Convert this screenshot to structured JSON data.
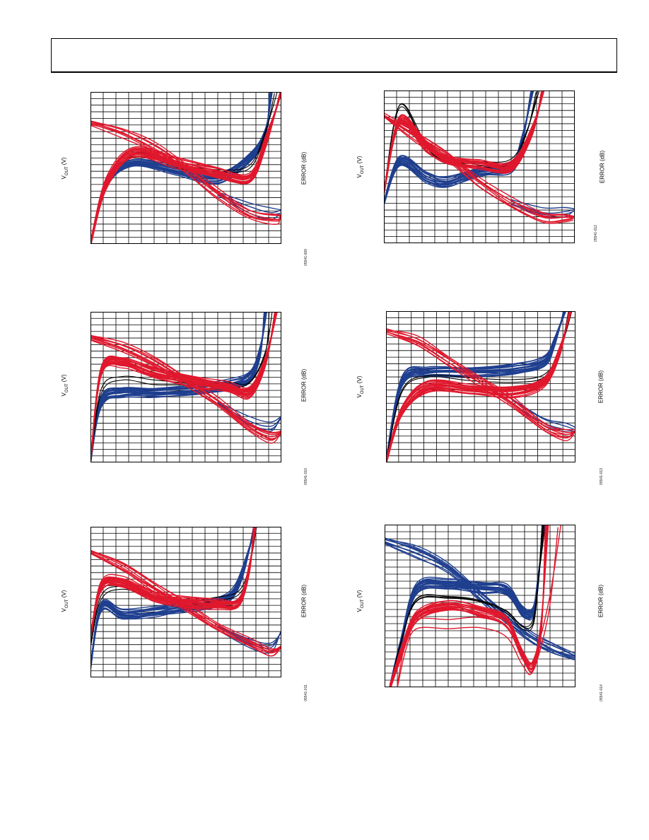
{
  "header": {},
  "colors": {
    "blue": "#1f3f8f",
    "red": "#e0182d",
    "black": "#000000",
    "grid": "#000000"
  },
  "chart_data": [
    {
      "type": "line",
      "figure_id": "05541-009",
      "ylabel": "VOUT (V)",
      "y2label": "ERROR (dB)",
      "grid": true,
      "series": [
        {
          "color": "blue",
          "count": 18,
          "values": [
            [
              0,
              0
            ],
            [
              1.5,
              12
            ],
            [
              4,
              16
            ],
            [
              8,
              14.5
            ],
            [
              12,
              13
            ],
            [
              15,
              17
            ],
            [
              16.5,
              22
            ],
            [
              17,
              30
            ]
          ]
        },
        {
          "color": "black",
          "count": 2,
          "values": [
            [
              0,
              0
            ],
            [
              1.5,
              12
            ],
            [
              4,
              17.5
            ],
            [
              8,
              15.5
            ],
            [
              12,
              14.5
            ],
            [
              15,
              15.5
            ],
            [
              16.5,
              22
            ],
            [
              17.5,
              30
            ]
          ]
        },
        {
          "color": "red",
          "count": 20,
          "values": [
            [
              0,
              0
            ],
            [
              1.5,
              12
            ],
            [
              4,
              18
            ],
            [
              8,
              16
            ],
            [
              12,
              14
            ],
            [
              15,
              13
            ],
            [
              16.5,
              20
            ],
            [
              18,
              30
            ]
          ]
        },
        {
          "color": "red",
          "count": 8,
          "values": [
            [
              0,
              24
            ],
            [
              3,
              22
            ],
            [
              6,
              19
            ],
            [
              9,
              15
            ],
            [
              12,
              10
            ],
            [
              15,
              6
            ],
            [
              17.5,
              5
            ],
            [
              18,
              5.5
            ]
          ]
        },
        {
          "color": "blue",
          "count": 4,
          "values": [
            [
              12,
              10
            ],
            [
              15,
              7
            ],
            [
              17,
              6
            ],
            [
              18,
              6.5
            ]
          ]
        }
      ]
    },
    {
      "type": "line",
      "figure_id": "05541-012",
      "ylabel": "VOUT (V)",
      "y2label": "ERROR (dB)",
      "grid": true,
      "series": [
        {
          "color": "blue",
          "count": 18,
          "values": [
            [
              0,
              8
            ],
            [
              1.5,
              16
            ],
            [
              4,
              13
            ],
            [
              6,
              12
            ],
            [
              9,
              14
            ],
            [
              12,
              15
            ],
            [
              13,
              20
            ],
            [
              14,
              30
            ]
          ]
        },
        {
          "color": "black",
          "count": 3,
          "values": [
            [
              0,
              10
            ],
            [
              1.5,
              27
            ],
            [
              4,
              19
            ],
            [
              6,
              16
            ],
            [
              9,
              15.5
            ],
            [
              12,
              16
            ],
            [
              13.5,
              22
            ],
            [
              14.5,
              30
            ]
          ]
        },
        {
          "color": "red",
          "count": 20,
          "values": [
            [
              0,
              10
            ],
            [
              1.5,
              24
            ],
            [
              4,
              19
            ],
            [
              6,
              16.5
            ],
            [
              9,
              15.5
            ],
            [
              12,
              15
            ],
            [
              14,
              22
            ],
            [
              15,
              30
            ]
          ]
        },
        {
          "color": "red",
          "count": 8,
          "values": [
            [
              0,
              25
            ],
            [
              3,
              21
            ],
            [
              6,
              17
            ],
            [
              9,
              12
            ],
            [
              12,
              8
            ],
            [
              15,
              5
            ],
            [
              17,
              5
            ],
            [
              18,
              5
            ]
          ]
        },
        {
          "color": "blue",
          "count": 4,
          "values": [
            [
              12,
              8
            ],
            [
              15,
              6
            ],
            [
              17,
              6
            ],
            [
              18,
              6.5
            ]
          ]
        }
      ]
    },
    {
      "type": "line",
      "figure_id": "05541-010",
      "ylabel": "VOUT (V)",
      "y2label": "ERROR (dB)",
      "grid": true,
      "series": [
        {
          "color": "blue",
          "count": 20,
          "values": [
            [
              0,
              0
            ],
            [
              1,
              12
            ],
            [
              3,
              14
            ],
            [
              6,
              14
            ],
            [
              10,
              14.5
            ],
            [
              13,
              15.5
            ],
            [
              15,
              17
            ],
            [
              16,
              22
            ],
            [
              16.5,
              30
            ]
          ]
        },
        {
          "color": "black",
          "count": 2,
          "values": [
            [
              0,
              0
            ],
            [
              1,
              14
            ],
            [
              3,
              17
            ],
            [
              6,
              16
            ],
            [
              10,
              15.5
            ],
            [
              13,
              15.5
            ],
            [
              15,
              16
            ],
            [
              16.5,
              22
            ],
            [
              17,
              30
            ]
          ]
        },
        {
          "color": "red",
          "count": 22,
          "values": [
            [
              0,
              0
            ],
            [
              1,
              18
            ],
            [
              3,
              20
            ],
            [
              6,
              18
            ],
            [
              10,
              16
            ],
            [
              13,
              15
            ],
            [
              15,
              14
            ],
            [
              16.5,
              20
            ],
            [
              17.5,
              30
            ]
          ]
        },
        {
          "color": "red",
          "count": 8,
          "values": [
            [
              0,
              25
            ],
            [
              3,
              23
            ],
            [
              6,
              20
            ],
            [
              9,
              16
            ],
            [
              12,
              12
            ],
            [
              15,
              7
            ],
            [
              17,
              5
            ],
            [
              18,
              6
            ]
          ]
        },
        {
          "color": "blue",
          "count": 4,
          "values": [
            [
              12,
              12
            ],
            [
              15,
              8
            ],
            [
              17,
              7
            ],
            [
              18,
              9
            ]
          ]
        }
      ]
    },
    {
      "type": "line",
      "figure_id": "05541-013",
      "ylabel": "VOUT (V)",
      "y2label": "ERROR (dB)",
      "grid": true,
      "series": [
        {
          "color": "blue",
          "count": 18,
          "values": [
            [
              0,
              0
            ],
            [
              1.5,
              16
            ],
            [
              4,
              18
            ],
            [
              8,
              18
            ],
            [
              12,
              18.5
            ],
            [
              15,
              20
            ],
            [
              16,
              24
            ],
            [
              17,
              30
            ]
          ]
        },
        {
          "color": "black",
          "count": 2,
          "values": [
            [
              0,
              0
            ],
            [
              1.5,
              14
            ],
            [
              4,
              17
            ],
            [
              8,
              16.5
            ],
            [
              12,
              16
            ],
            [
              15,
              17
            ],
            [
              16.5,
              22
            ],
            [
              17.5,
              30
            ]
          ]
        },
        {
          "color": "red",
          "count": 20,
          "values": [
            [
              0,
              0
            ],
            [
              1.5,
              10
            ],
            [
              4,
              15
            ],
            [
              8,
              14.5
            ],
            [
              12,
              14
            ],
            [
              15,
              16
            ],
            [
              16.5,
              22
            ],
            [
              17.5,
              30
            ]
          ]
        },
        {
          "color": "red",
          "count": 8,
          "values": [
            [
              0,
              26
            ],
            [
              3,
              24
            ],
            [
              6,
              20
            ],
            [
              9,
              16
            ],
            [
              12,
              12
            ],
            [
              15,
              7
            ],
            [
              17,
              5.5
            ],
            [
              18,
              6
            ]
          ]
        },
        {
          "color": "blue",
          "count": 4,
          "values": [
            [
              12,
              12
            ],
            [
              15,
              8
            ],
            [
              17,
              7
            ],
            [
              18,
              6.5
            ]
          ]
        }
      ]
    },
    {
      "type": "line",
      "figure_id": "05541-011",
      "ylabel": "VOUT (V)",
      "y2label": "ERROR (dB)",
      "grid": true,
      "series": [
        {
          "color": "blue",
          "count": 20,
          "values": [
            [
              0,
              2
            ],
            [
              1,
              14
            ],
            [
              3,
              12.5
            ],
            [
              6,
              13
            ],
            [
              9,
              14
            ],
            [
              12,
              15
            ],
            [
              13.5,
              17
            ],
            [
              14.5,
              22
            ],
            [
              15.5,
              30
            ]
          ]
        },
        {
          "color": "black",
          "count": 2,
          "values": [
            [
              0,
              6
            ],
            [
              1,
              16
            ],
            [
              3,
              18
            ],
            [
              6,
              16
            ],
            [
              9,
              15
            ],
            [
              12,
              15.5
            ],
            [
              14,
              17
            ],
            [
              15,
              22
            ],
            [
              15.5,
              30
            ]
          ]
        },
        {
          "color": "red",
          "count": 22,
          "values": [
            [
              0,
              8
            ],
            [
              1,
              18
            ],
            [
              3,
              19
            ],
            [
              6,
              16
            ],
            [
              9,
              15
            ],
            [
              12,
              14.5
            ],
            [
              14,
              15
            ],
            [
              15,
              22
            ],
            [
              15.5,
              30
            ]
          ]
        },
        {
          "color": "red",
          "count": 8,
          "values": [
            [
              0,
              25
            ],
            [
              3,
              22
            ],
            [
              6,
              18
            ],
            [
              9,
              14
            ],
            [
              12,
              10
            ],
            [
              15,
              7
            ],
            [
              17,
              5
            ],
            [
              18,
              6
            ]
          ]
        },
        {
          "color": "blue",
          "count": 4,
          "values": [
            [
              12,
              10
            ],
            [
              15,
              7
            ],
            [
              17,
              6
            ],
            [
              18,
              9
            ]
          ]
        }
      ]
    },
    {
      "type": "line",
      "figure_id": "05541-014",
      "ylabel": "VOUT (V)",
      "y2label": "ERROR (dB)",
      "grid": true,
      "series": [
        {
          "color": "blue",
          "count": 22,
          "values": [
            [
              0.5,
              0
            ],
            [
              1.5,
              8
            ],
            [
              3,
              18
            ],
            [
              6,
              19
            ],
            [
              9,
              18.5
            ],
            [
              11.5,
              18
            ],
            [
              13,
              14
            ],
            [
              14,
              14
            ],
            [
              14.5,
              20
            ],
            [
              15,
              30
            ]
          ]
        },
        {
          "color": "black",
          "count": 4,
          "values": [
            [
              0.5,
              0
            ],
            [
              1.5,
              8
            ],
            [
              3,
              16
            ],
            [
              6,
              16.5
            ],
            [
              9,
              16
            ],
            [
              11.5,
              14
            ],
            [
              13,
              11
            ],
            [
              14,
              12
            ],
            [
              14.5,
              20
            ],
            [
              15,
              30
            ]
          ]
        },
        {
          "color": "red",
          "count": 16,
          "values": [
            [
              0.5,
              0
            ],
            [
              1.5,
              6
            ],
            [
              3,
              13
            ],
            [
              6,
              15
            ],
            [
              9,
              14
            ],
            [
              11.5,
              12
            ],
            [
              13,
              6
            ],
            [
              14,
              4
            ],
            [
              14.8,
              12
            ],
            [
              15.3,
              30
            ]
          ]
        },
        {
          "color": "red",
          "count": 2,
          "values": [
            [
              1.2,
              0
            ],
            [
              2,
              8
            ],
            [
              3,
              11.5
            ],
            [
              6,
              11.5
            ],
            [
              9,
              12
            ],
            [
              11.5,
              10
            ],
            [
              13,
              5
            ],
            [
              14,
              4
            ],
            [
              15.5,
              15
            ],
            [
              16.5,
              30
            ]
          ]
        },
        {
          "color": "blue",
          "count": 10,
          "values": [
            [
              0,
              27
            ],
            [
              3,
              25
            ],
            [
              6,
              22
            ],
            [
              9,
              17
            ],
            [
              12,
              12
            ],
            [
              14,
              9
            ],
            [
              16,
              7
            ],
            [
              18,
              5.5
            ]
          ]
        }
      ]
    }
  ]
}
